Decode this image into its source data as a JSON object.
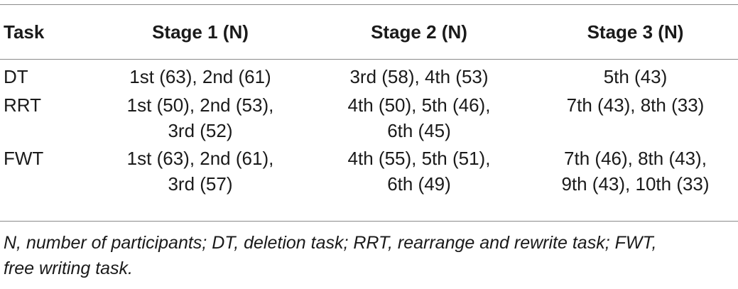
{
  "table": {
    "headers": [
      "Task",
      "Stage 1 (N)",
      "Stage 2 (N)",
      "Stage 3 (N)"
    ],
    "rows": [
      {
        "task": "DT",
        "stage1": [
          "1st (63), 2nd (61)"
        ],
        "stage2": [
          "3rd (58), 4th (53)"
        ],
        "stage3": [
          "5th (43)"
        ]
      },
      {
        "task": "RRT",
        "stage1": [
          "1st (50), 2nd (53),",
          "3rd (52)"
        ],
        "stage2": [
          "4th (50), 5th (46),",
          "6th (45)"
        ],
        "stage3": [
          "7th (43), 8th (33)"
        ]
      },
      {
        "task": "FWT",
        "stage1": [
          "1st (63), 2nd (61),",
          "3rd (57)"
        ],
        "stage2": [
          "4th (55), 5th (51),",
          "6th (49)"
        ],
        "stage3": [
          "7th (46), 8th (43),",
          "9th (43), 10th (33)"
        ]
      }
    ]
  },
  "footnote": {
    "line1": "N, number of participants; DT, deletion task; RRT, rearrange and rewrite task; FWT,",
    "line2": "free writing task."
  }
}
